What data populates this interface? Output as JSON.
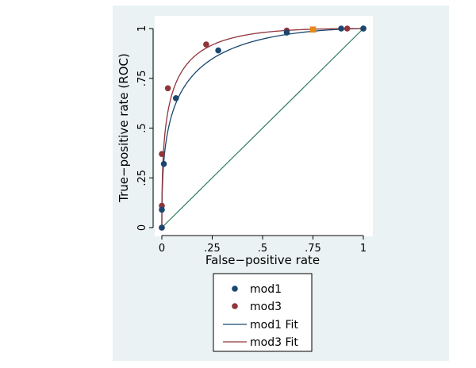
{
  "chart_data": {
    "type": "scatter",
    "xlabel": "False−positive rate",
    "ylabel": "True−positive rate (ROC)",
    "xlim": [
      0,
      1
    ],
    "ylim": [
      0,
      1
    ],
    "xticks": [
      {
        "value": 0,
        "label": "0"
      },
      {
        "value": 0.25,
        "label": ".25"
      },
      {
        "value": 0.5,
        "label": ".5"
      },
      {
        "value": 0.75,
        "label": ".75"
      },
      {
        "value": 1,
        "label": "1"
      }
    ],
    "yticks": [
      {
        "value": 0,
        "label": "0"
      },
      {
        "value": 0.25,
        "label": ".25"
      },
      {
        "value": 0.5,
        "label": ".5"
      },
      {
        "value": 0.75,
        "label": ".75"
      },
      {
        "value": 1,
        "label": "1"
      }
    ],
    "grid": false,
    "legend_position": "bottom",
    "series": [
      {
        "name": "mod1",
        "kind": "points",
        "color": "#1a476f",
        "points": [
          [
            0,
            0
          ],
          [
            0,
            0.09
          ],
          [
            0.01,
            0.32
          ],
          [
            0.07,
            0.65
          ],
          [
            0.28,
            0.89
          ],
          [
            0.62,
            0.98
          ],
          [
            0.89,
            1.0
          ],
          [
            1,
            1
          ]
        ]
      },
      {
        "name": "mod3",
        "kind": "points",
        "color": "#90353b",
        "points": [
          [
            0,
            0
          ],
          [
            0,
            0.11
          ],
          [
            0,
            0.37
          ],
          [
            0.03,
            0.7
          ],
          [
            0.22,
            0.92
          ],
          [
            0.62,
            0.99
          ],
          [
            0.92,
            1.0
          ],
          [
            1,
            1
          ]
        ]
      },
      {
        "name": "mod1 Fit",
        "kind": "fit",
        "color": "#1a476f",
        "binormal": {
          "a": 1.62,
          "b": 0.88
        }
      },
      {
        "name": "mod3 Fit",
        "kind": "fit",
        "color": "#90353b",
        "binormal": {
          "a": 2.05,
          "b": 0.98
        }
      }
    ],
    "reference_line": {
      "from": [
        0,
        0
      ],
      "to": [
        1,
        1
      ],
      "color": "#2c7a5b"
    },
    "highlight_point": {
      "x": 0.75,
      "y": 0.995,
      "color": "#e88a18"
    },
    "background": {
      "outer": "#eaf2f3",
      "plot": "#ffffff"
    }
  }
}
